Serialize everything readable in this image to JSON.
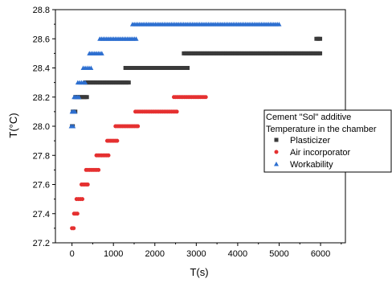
{
  "chart_data": {
    "type": "scatter",
    "xlabel": "T(s)",
    "ylabel": "T(°C)",
    "xlim": [
      -400,
      6600
    ],
    "ylim": [
      27.2,
      28.8
    ],
    "xticks": [
      0,
      1000,
      2000,
      3000,
      4000,
      5000,
      6000
    ],
    "yticks": [
      27.2,
      27.4,
      27.6,
      27.8,
      28.0,
      28.2,
      28.4,
      28.6,
      28.8
    ],
    "xtick_labels": [
      "0",
      "1000",
      "2000",
      "3000",
      "4000",
      "5000",
      "6000"
    ],
    "ytick_labels": [
      "27.2",
      "27.4",
      "27.6",
      "27.8",
      "28.0",
      "28.2",
      "28.4",
      "28.6",
      "28.8"
    ],
    "legend": {
      "title_lines": [
        "Cement \"Sol\" additive",
        "Temperature in the chamber"
      ],
      "placement": "right"
    },
    "series": [
      {
        "name": "Plasticizer",
        "color": "#3a3a3a",
        "marker": "square",
        "segments": [
          {
            "y": 28.0,
            "x0": 0,
            "x1": 20
          },
          {
            "y": 28.1,
            "x0": 20,
            "x1": 80
          },
          {
            "y": 28.2,
            "x0": 80,
            "x1": 360
          },
          {
            "y": 28.3,
            "x0": 330,
            "x1": 1370
          },
          {
            "y": 28.4,
            "x0": 1290,
            "x1": 2790
          },
          {
            "y": 28.5,
            "x0": 2700,
            "x1": 5990
          },
          {
            "y": 28.6,
            "x0": 5900,
            "x1": 5990
          }
        ]
      },
      {
        "name": "Air incorporator",
        "color": "#e53030",
        "marker": "circle",
        "segments": [
          {
            "y": 27.3,
            "x0": 0,
            "x1": 40
          },
          {
            "y": 27.4,
            "x0": 50,
            "x1": 130
          },
          {
            "y": 27.5,
            "x0": 110,
            "x1": 250
          },
          {
            "y": 27.6,
            "x0": 230,
            "x1": 380
          },
          {
            "y": 27.7,
            "x0": 340,
            "x1": 640
          },
          {
            "y": 27.8,
            "x0": 590,
            "x1": 880
          },
          {
            "y": 27.9,
            "x0": 850,
            "x1": 1090
          },
          {
            "y": 28.0,
            "x0": 1050,
            "x1": 1590
          },
          {
            "y": 28.1,
            "x0": 1530,
            "x1": 2530
          },
          {
            "y": 28.2,
            "x0": 2460,
            "x1": 3230
          }
        ]
      },
      {
        "name": "Workability",
        "color": "#2d6fd0",
        "marker": "triangle",
        "segments": [
          {
            "y": 28.0,
            "x0": -20,
            "x1": 30
          },
          {
            "y": 28.1,
            "x0": 0,
            "x1": 70
          },
          {
            "y": 28.2,
            "x0": 50,
            "x1": 170
          },
          {
            "y": 28.3,
            "x0": 140,
            "x1": 320
          },
          {
            "y": 28.4,
            "x0": 270,
            "x1": 460
          },
          {
            "y": 28.5,
            "x0": 420,
            "x1": 720
          },
          {
            "y": 28.6,
            "x0": 670,
            "x1": 1550
          },
          {
            "y": 28.7,
            "x0": 1460,
            "x1": 5000
          }
        ]
      }
    ]
  }
}
